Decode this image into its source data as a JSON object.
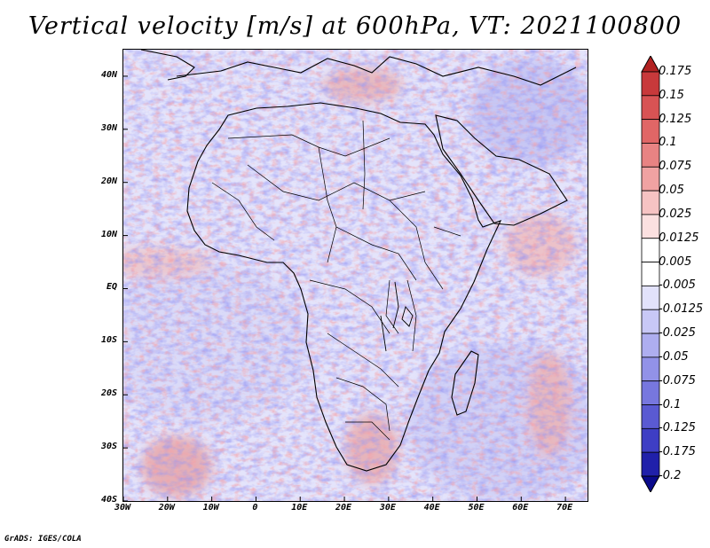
{
  "title": "Vertical velocity [m/s] at 600hPa, VT: 2021100800",
  "credit": "GrADS: IGES/COLA",
  "chart_data": {
    "type": "heatmap",
    "title": "Vertical velocity [m/s] at 600hPa, VT: 2021100800",
    "variable": "Vertical velocity",
    "units": "m/s",
    "level": "600hPa",
    "valid_time": "2021100800",
    "xlim": [
      -30,
      75
    ],
    "ylim": [
      -40,
      45
    ],
    "y_ticks": [
      {
        "value": 40,
        "label": "40N"
      },
      {
        "value": 30,
        "label": "30N"
      },
      {
        "value": 20,
        "label": "20N"
      },
      {
        "value": 10,
        "label": "10N"
      },
      {
        "value": 0,
        "label": "EQ"
      },
      {
        "value": -10,
        "label": "10S"
      },
      {
        "value": -20,
        "label": "20S"
      },
      {
        "value": -30,
        "label": "30S"
      },
      {
        "value": -40,
        "label": "40S"
      }
    ],
    "x_ticks": [
      {
        "value": -30,
        "label": "30W"
      },
      {
        "value": -20,
        "label": "20W"
      },
      {
        "value": -10,
        "label": "10W"
      },
      {
        "value": 0,
        "label": "0"
      },
      {
        "value": 10,
        "label": "10E"
      },
      {
        "value": 20,
        "label": "20E"
      },
      {
        "value": 30,
        "label": "30E"
      },
      {
        "value": 40,
        "label": "40E"
      },
      {
        "value": 50,
        "label": "50E"
      },
      {
        "value": 60,
        "label": "60E"
      },
      {
        "value": 70,
        "label": "70E"
      }
    ],
    "colorbar": {
      "labels": [
        "0.175",
        "0.15",
        "0.125",
        "0.1",
        "0.075",
        "0.05",
        "0.025",
        "0.0125",
        "0.005",
        "-0.005",
        "-0.0125",
        "-0.025",
        "-0.05",
        "-0.075",
        "-0.1",
        "-0.125",
        "-0.175",
        "-0.2"
      ],
      "colors": [
        "#b22222",
        "#c8393b",
        "#d85354",
        "#e06666",
        "#e88383",
        "#f0a2a2",
        "#f6c3c3",
        "#fbe0e0",
        "#ffffff",
        "#ffffff",
        "#e2e2fb",
        "#c8c8f6",
        "#aeaef0",
        "#9292e8",
        "#7777de",
        "#5a5ad2",
        "#3e3ec4",
        "#2020aa",
        "#0a0a8c"
      ]
    }
  }
}
